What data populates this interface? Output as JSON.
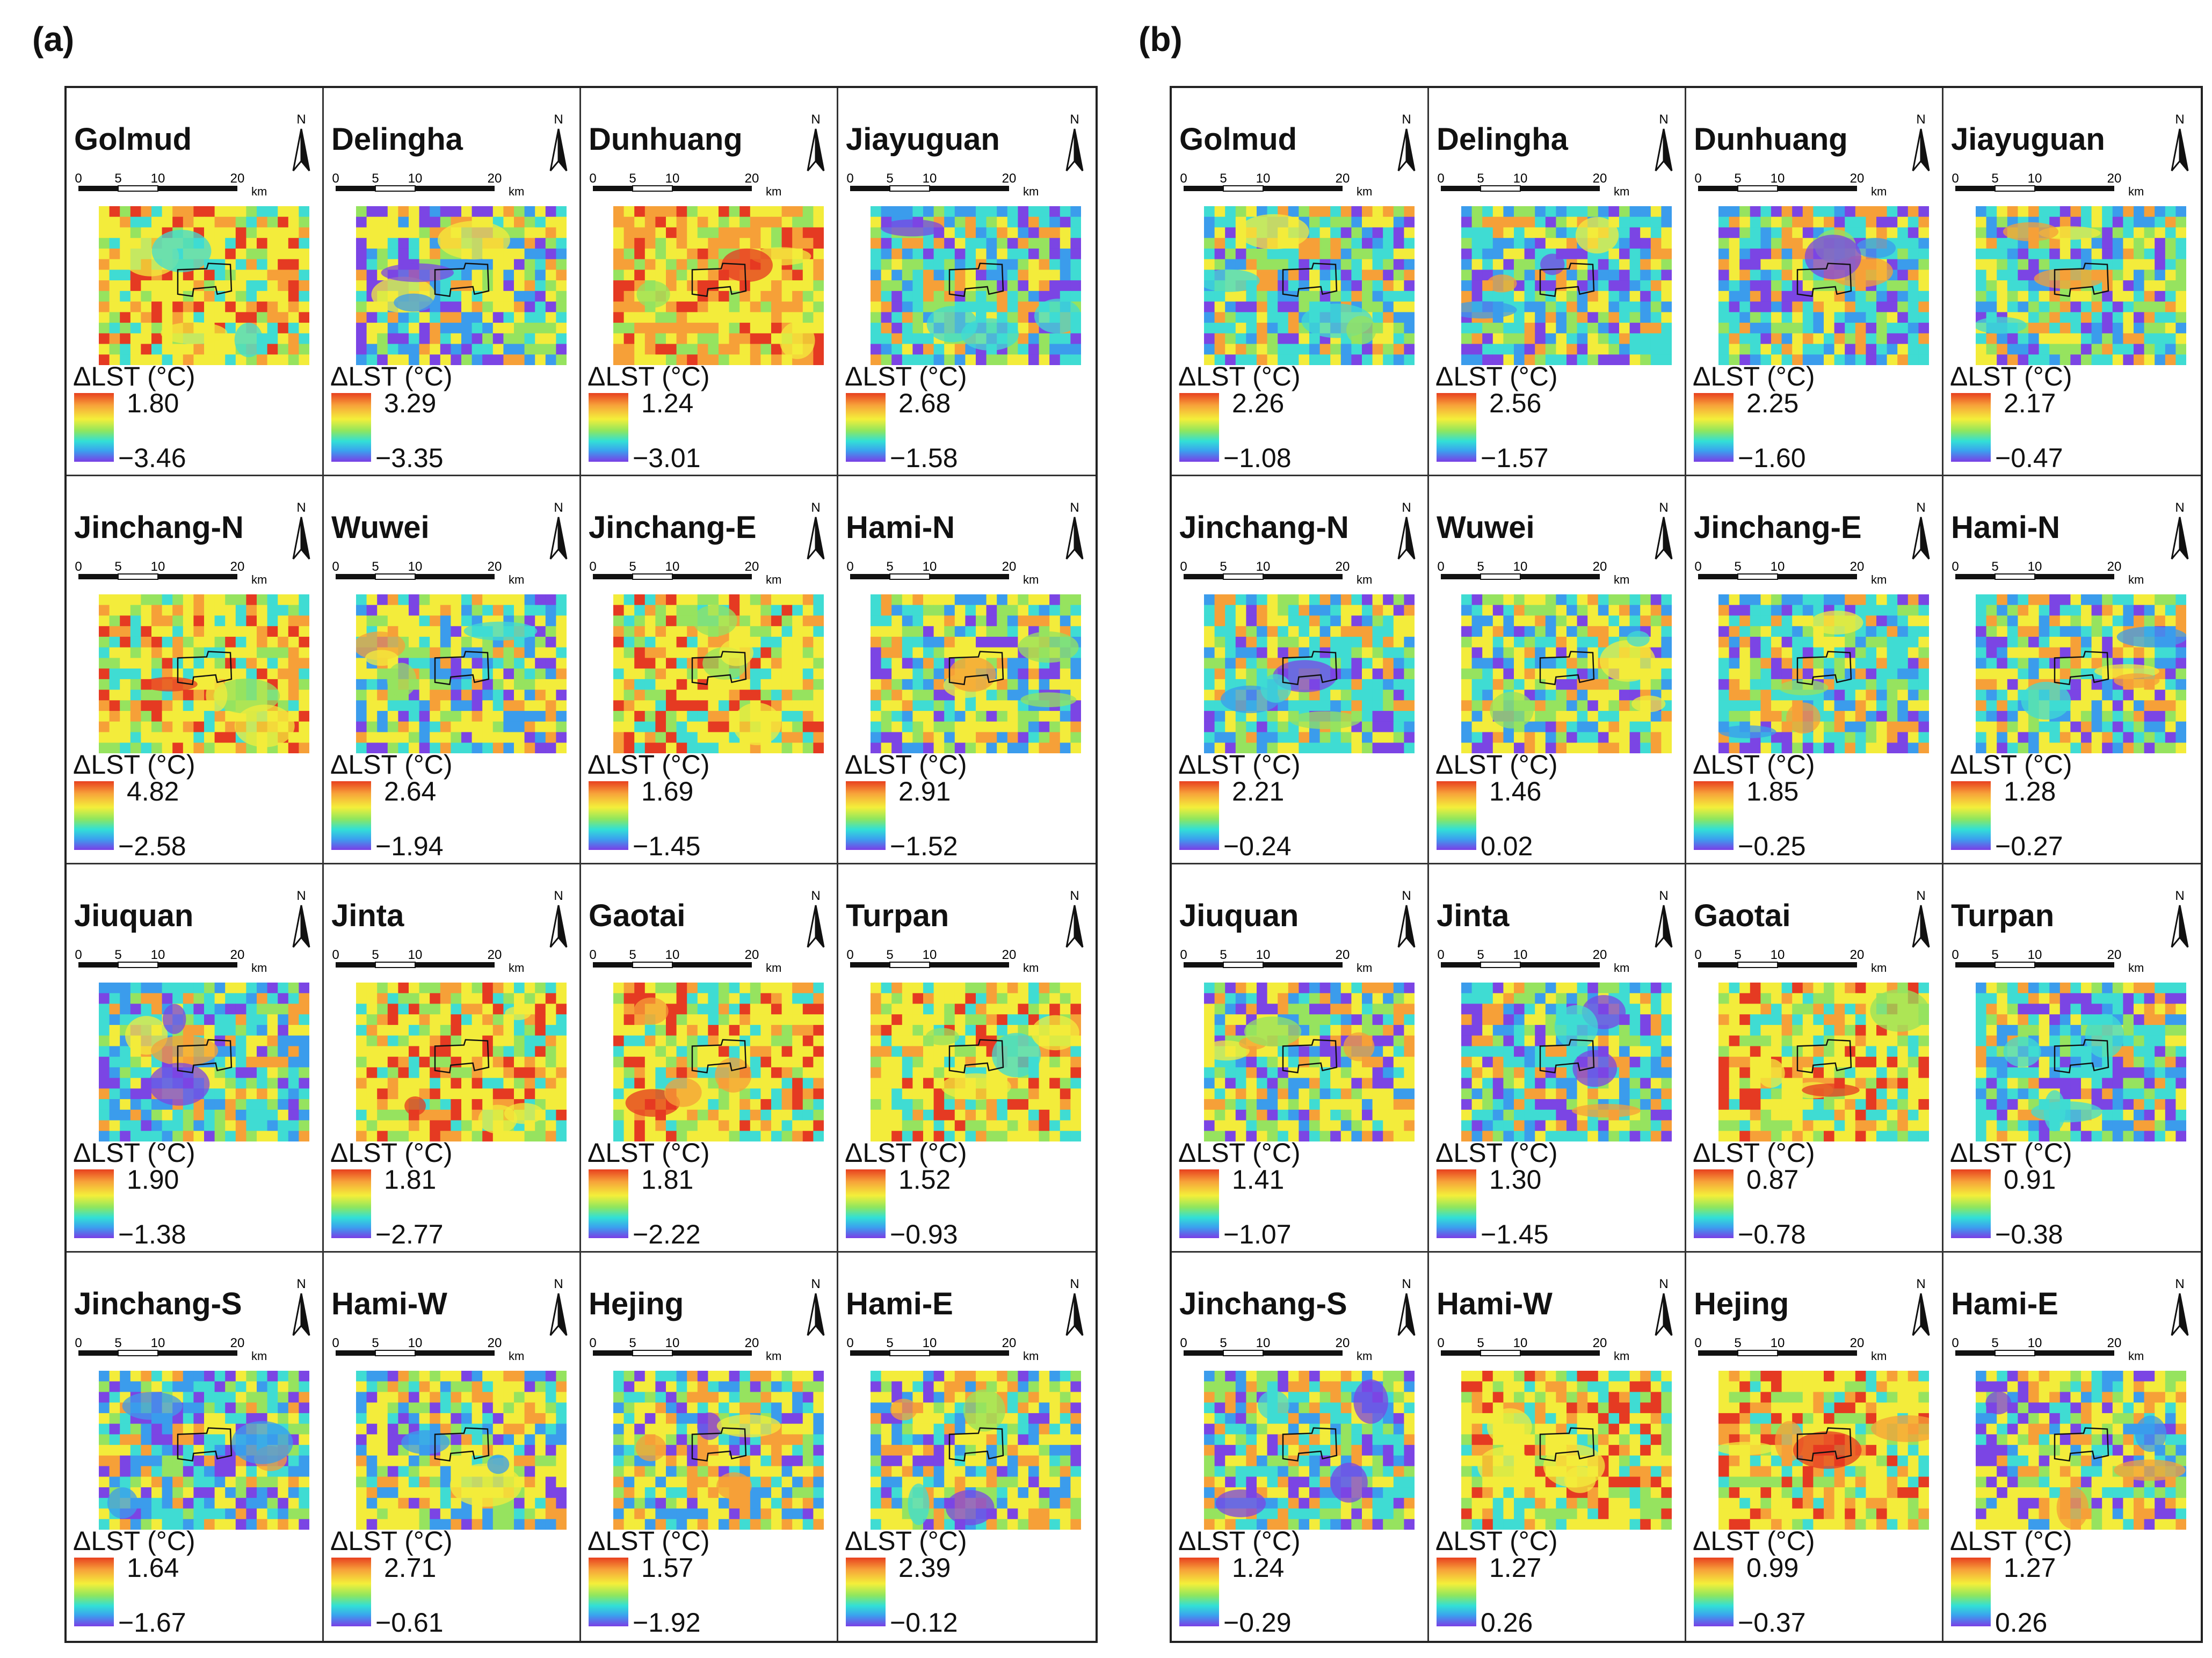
{
  "figure": {
    "legend_title": "ΔLST (°C)",
    "scale_ticks": [
      "0",
      "5",
      "10",
      "20"
    ],
    "scale_unit": "km",
    "north_label": "N"
  },
  "panels": [
    {
      "label": "(a)",
      "cells": [
        {
          "city": "Golmud",
          "max": "1.80",
          "min": "−3.46",
          "scheme": "warm"
        },
        {
          "city": "Delingha",
          "max": "3.29",
          "min": "−3.35",
          "scheme": "mixed"
        },
        {
          "city": "Dunhuang",
          "max": "1.24",
          "min": "−3.01",
          "scheme": "hot"
        },
        {
          "city": "Jiayuguan",
          "max": "2.68",
          "min": "−1.58",
          "scheme": "cool"
        },
        {
          "city": "Jinchang-N",
          "max": "4.82",
          "min": "−2.58",
          "scheme": "warm"
        },
        {
          "city": "Wuwei",
          "max": "2.64",
          "min": "−1.94",
          "scheme": "mixed"
        },
        {
          "city": "Jinchang-E",
          "max": "1.69",
          "min": "−1.45",
          "scheme": "warm"
        },
        {
          "city": "Hami-N",
          "max": "2.91",
          "min": "−1.52",
          "scheme": "mixed"
        },
        {
          "city": "Jiuquan",
          "max": "1.90",
          "min": "−1.38",
          "scheme": "cool"
        },
        {
          "city": "Jinta",
          "max": "1.81",
          "min": "−2.77",
          "scheme": "warm"
        },
        {
          "city": "Gaotai",
          "max": "1.81",
          "min": "−2.22",
          "scheme": "warm"
        },
        {
          "city": "Turpan",
          "max": "1.52",
          "min": "−0.93",
          "scheme": "warm"
        },
        {
          "city": "Jinchang-S",
          "max": "1.64",
          "min": "−1.67",
          "scheme": "cool"
        },
        {
          "city": "Hami-W",
          "max": "2.71",
          "min": "−0.61",
          "scheme": "mixed"
        },
        {
          "city": "Hejing",
          "max": "1.57",
          "min": "−1.92",
          "scheme": "mixed"
        },
        {
          "city": "Hami-E",
          "max": "2.39",
          "min": "−0.12",
          "scheme": "mixed"
        }
      ]
    },
    {
      "label": "(b)",
      "cells": [
        {
          "city": "Golmud",
          "max": "2.26",
          "min": "−1.08",
          "scheme": "cool"
        },
        {
          "city": "Delingha",
          "max": "2.56",
          "min": "−1.57",
          "scheme": "cool"
        },
        {
          "city": "Dunhuang",
          "max": "2.25",
          "min": "−1.60",
          "scheme": "cool"
        },
        {
          "city": "Jiayuguan",
          "max": "2.17",
          "min": "−0.47",
          "scheme": "cool"
        },
        {
          "city": "Jinchang-N",
          "max": "2.21",
          "min": "−0.24",
          "scheme": "cool"
        },
        {
          "city": "Wuwei",
          "max": "1.46",
          "min": "0.02",
          "scheme": "mixed"
        },
        {
          "city": "Jinchang-E",
          "max": "1.85",
          "min": "−0.25",
          "scheme": "cool"
        },
        {
          "city": "Hami-N",
          "max": "1.28",
          "min": "−0.27",
          "scheme": "mixed"
        },
        {
          "city": "Jiuquan",
          "max": "1.41",
          "min": "−1.07",
          "scheme": "mixed"
        },
        {
          "city": "Jinta",
          "max": "1.30",
          "min": "−1.45",
          "scheme": "cool"
        },
        {
          "city": "Gaotai",
          "max": "0.87",
          "min": "−0.78",
          "scheme": "warm"
        },
        {
          "city": "Turpan",
          "max": "0.91",
          "min": "−0.38",
          "scheme": "cool"
        },
        {
          "city": "Jinchang-S",
          "max": "1.24",
          "min": "−0.29",
          "scheme": "cool"
        },
        {
          "city": "Hami-W",
          "max": "1.27",
          "min": "0.26",
          "scheme": "warm"
        },
        {
          "city": "Hejing",
          "max": "0.99",
          "min": "−0.37",
          "scheme": "warm"
        },
        {
          "city": "Hami-E",
          "max": "1.27",
          "min": "0.26",
          "scheme": "mixed"
        }
      ]
    }
  ],
  "colors": {
    "red": "#e53a22",
    "orange": "#f6a038",
    "yellow": "#f3ec3b",
    "green": "#96e35f",
    "cyan": "#3fdcd3",
    "blue": "#3b9cec",
    "purple": "#7b45e4"
  }
}
